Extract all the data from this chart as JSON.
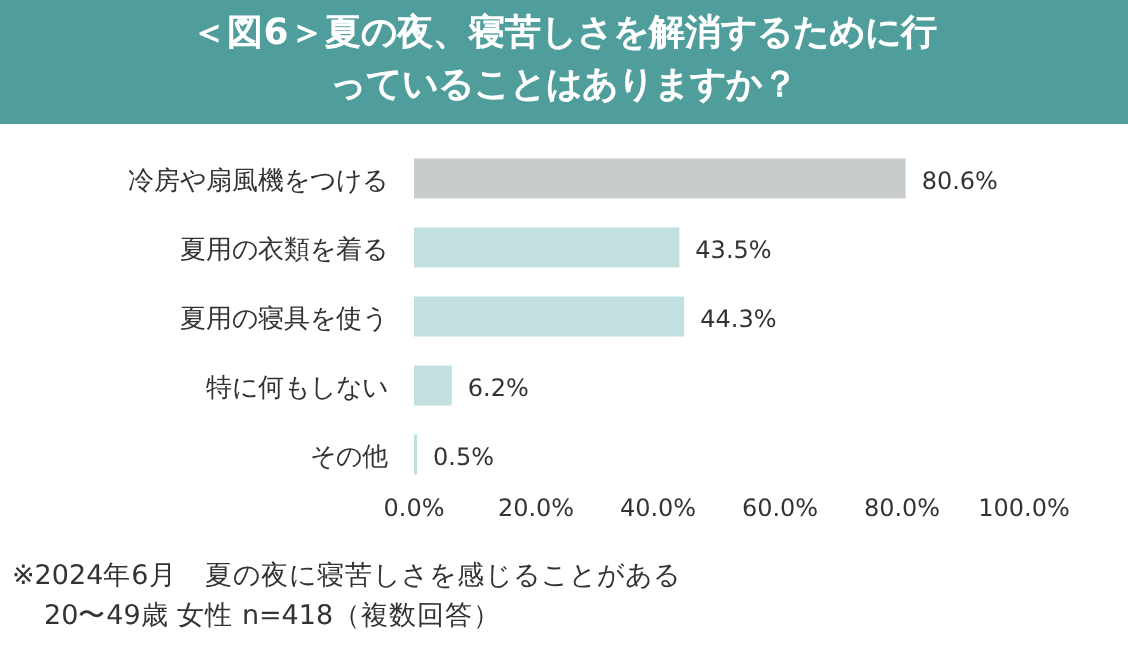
{
  "chart_data": {
    "type": "bar",
    "orientation": "horizontal",
    "title": "＜図6＞夏の夜、寝苦しさを解消するために行っていることはありますか？",
    "categories": [
      "冷房や扇風機をつける",
      "夏用の衣類を着る",
      "夏用の寝具を使う",
      "特に何もしない",
      "その他"
    ],
    "values": [
      80.6,
      43.5,
      44.3,
      6.2,
      0.5
    ],
    "value_labels": [
      "80.6%",
      "43.5%",
      "44.3%",
      "6.2%",
      "0.5%"
    ],
    "colors": [
      "#c9cccc",
      "#c2e0e0",
      "#c2e0e0",
      "#c2e0e0",
      "#c2e0e0"
    ],
    "xlim": [
      0,
      100
    ],
    "xticks": [
      {
        "value": 0,
        "label": "0.0%"
      },
      {
        "value": 20,
        "label": "20.0%"
      },
      {
        "value": 40,
        "label": "40.0%"
      },
      {
        "value": 60,
        "label": "60.0%"
      },
      {
        "value": 80,
        "label": "80.0%"
      },
      {
        "value": 100,
        "label": "100.0%"
      }
    ],
    "annotations": [
      "※2024年6月　夏の夜に寝苦しさを感じることがある",
      "20〜49歳 女性 n=418（複数回答）"
    ]
  }
}
